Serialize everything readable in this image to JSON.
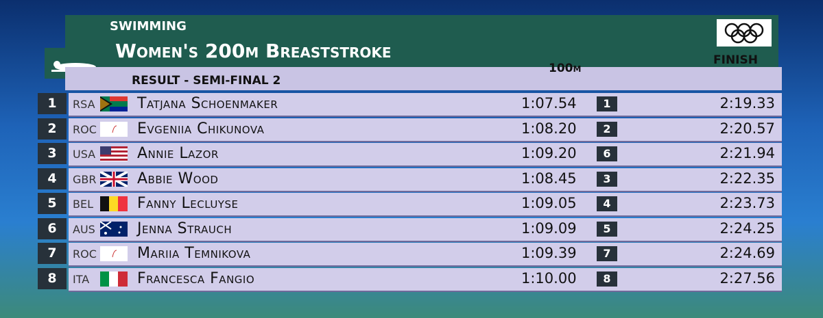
{
  "header": {
    "sport": "SWIMMING",
    "event": "Women's 200m Breaststroke",
    "subtitle": "RESULT - SEMI-FINAL 2"
  },
  "columns": {
    "split": "100m",
    "finish": "FINISH"
  },
  "rows": [
    {
      "rank": "1",
      "country": "RSA",
      "name": "Tatjana Schoenmaker",
      "split": "1:07.54",
      "split_rank": "1",
      "time": "2:19.33"
    },
    {
      "rank": "2",
      "country": "ROC",
      "name": "Evgeniia Chikunova",
      "split": "1:08.20",
      "split_rank": "2",
      "time": "2:20.57"
    },
    {
      "rank": "3",
      "country": "USA",
      "name": "Annie Lazor",
      "split": "1:09.20",
      "split_rank": "6",
      "time": "2:21.94"
    },
    {
      "rank": "4",
      "country": "GBR",
      "name": "Abbie Wood",
      "split": "1:08.45",
      "split_rank": "3",
      "time": "2:22.35"
    },
    {
      "rank": "5",
      "country": "BEL",
      "name": "Fanny Lecluyse",
      "split": "1:09.05",
      "split_rank": "4",
      "time": "2:23.73"
    },
    {
      "rank": "6",
      "country": "AUS",
      "name": "Jenna Strauch",
      "split": "1:09.09",
      "split_rank": "5",
      "time": "2:24.25"
    },
    {
      "rank": "7",
      "country": "ROC",
      "name": "Mariia Temnikova",
      "split": "1:09.39",
      "split_rank": "7",
      "time": "2:24.69"
    },
    {
      "rank": "8",
      "country": "ITA",
      "name": "Francesca Fangio",
      "split": "1:10.00",
      "split_rank": "8",
      "time": "2:27.56"
    }
  ]
}
